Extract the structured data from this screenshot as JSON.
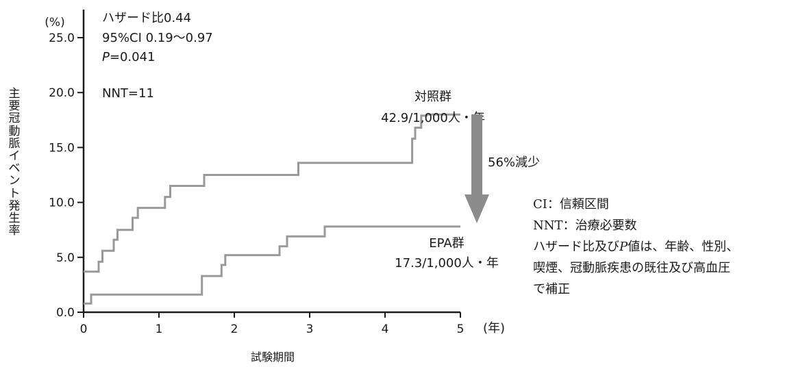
{
  "chart_data": {
    "type": "line",
    "y_unit": "(%)",
    "x_unit": "(年)",
    "xlabel": "試験期間",
    "ylabel": "主要冠動脈イベント発生率",
    "xlim": [
      0,
      5
    ],
    "ylim": [
      0,
      25
    ],
    "x_ticks": [
      0,
      1,
      2,
      3,
      4,
      5
    ],
    "x_tick_labels": [
      "0",
      "1",
      "2",
      "3",
      "4",
      "5"
    ],
    "y_ticks": [
      0,
      5,
      10,
      15,
      20,
      25
    ],
    "y_tick_labels": [
      "0.0",
      "5.0",
      "10.0",
      "15.0",
      "20.0",
      "25.0"
    ],
    "grid": false,
    "series": [
      {
        "name": "対照群",
        "rate_label": "42.9/1,000人・年",
        "color": "#999999",
        "points": [
          [
            0,
            3.7
          ],
          [
            0.2,
            3.7
          ],
          [
            0.2,
            4.6
          ],
          [
            0.25,
            4.6
          ],
          [
            0.25,
            5.6
          ],
          [
            0.4,
            5.6
          ],
          [
            0.4,
            6.6
          ],
          [
            0.45,
            6.6
          ],
          [
            0.45,
            7.5
          ],
          [
            0.65,
            7.5
          ],
          [
            0.65,
            8.6
          ],
          [
            0.72,
            8.6
          ],
          [
            0.72,
            9.5
          ],
          [
            1.08,
            9.5
          ],
          [
            1.08,
            10.5
          ],
          [
            1.15,
            10.5
          ],
          [
            1.15,
            11.5
          ],
          [
            1.6,
            11.5
          ],
          [
            1.6,
            12.5
          ],
          [
            2.85,
            12.5
          ],
          [
            2.85,
            13.6
          ],
          [
            4.36,
            13.6
          ],
          [
            4.36,
            15.8
          ],
          [
            4.4,
            15.8
          ],
          [
            4.4,
            16.8
          ],
          [
            4.48,
            16.8
          ],
          [
            4.48,
            17.9
          ],
          [
            4.55,
            17.9
          ],
          [
            4.55,
            18.0
          ],
          [
            5.0,
            18.0
          ]
        ]
      },
      {
        "name": "EPA群",
        "rate_label": "17.3/1,000人・年",
        "color": "#999999",
        "points": [
          [
            0,
            0.8
          ],
          [
            0.1,
            0.8
          ],
          [
            0.1,
            1.6
          ],
          [
            1.57,
            1.6
          ],
          [
            1.57,
            3.3
          ],
          [
            1.83,
            3.3
          ],
          [
            1.83,
            4.3
          ],
          [
            1.88,
            4.3
          ],
          [
            1.88,
            5.2
          ],
          [
            2.6,
            5.2
          ],
          [
            2.6,
            6.0
          ],
          [
            2.7,
            6.0
          ],
          [
            2.7,
            6.9
          ],
          [
            3.2,
            6.9
          ],
          [
            3.2,
            7.8
          ],
          [
            5.0,
            7.8
          ]
        ]
      }
    ],
    "annotations": {
      "hr": "ハザード比0.44",
      "ci": "95%CI 0.19～0.97",
      "p_letter": "P",
      "p_value": "=0.041",
      "nnt": "NNT=11",
      "reduction": "56%減少"
    }
  },
  "notes": {
    "ci_def": "CI：信頼区間",
    "nnt_def": "NNT：治療必要数",
    "adjust_pre": "ハザード比及び",
    "adjust_p": "P",
    "adjust_post": "値は、年齢、性別、",
    "adjust_line2": "喫煙、冠動脈疾患の既往及び高血圧",
    "adjust_line3": "で補正"
  },
  "colors": {
    "axis": "#1a1a1a",
    "series": "#999999",
    "arrow": "#8c8c8c",
    "text": "#1a1a1a"
  }
}
